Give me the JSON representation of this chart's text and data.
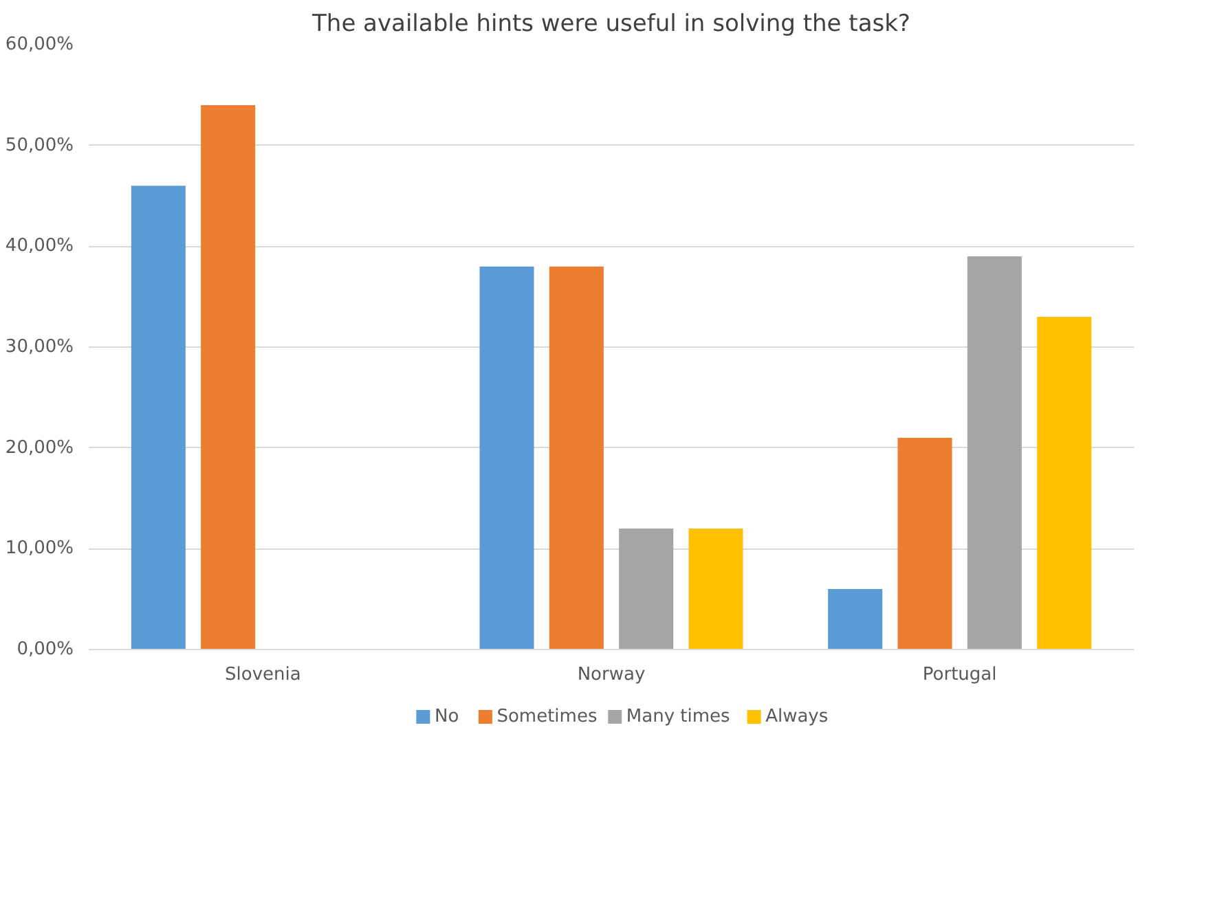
{
  "chart_data": {
    "type": "bar",
    "title": "The available hints were useful in solving the task?",
    "categories": [
      "Slovenia",
      "Norway",
      "Portugal"
    ],
    "series": [
      {
        "name": "No",
        "color": "#5b9bd5",
        "values": [
          46,
          38,
          6
        ]
      },
      {
        "name": "Sometimes",
        "color": "#ed7d31",
        "values": [
          54,
          38,
          21
        ]
      },
      {
        "name": "Many times",
        "color": "#a5a5a5",
        "values": [
          0,
          12,
          39
        ]
      },
      {
        "name": "Always",
        "color": "#ffc000",
        "values": [
          0,
          12,
          33
        ]
      }
    ],
    "ylim": [
      0,
      60
    ],
    "yticks": [
      {
        "value": 0,
        "label": "0,00%"
      },
      {
        "value": 10,
        "label": "10,00%"
      },
      {
        "value": 20,
        "label": "20,00%"
      },
      {
        "value": 30,
        "label": "30,00%"
      },
      {
        "value": 40,
        "label": "40,00%"
      },
      {
        "value": 50,
        "label": "50,00%"
      },
      {
        "value": 60,
        "label": "60,00%"
      }
    ],
    "grid": "y",
    "legend": "bottom"
  }
}
